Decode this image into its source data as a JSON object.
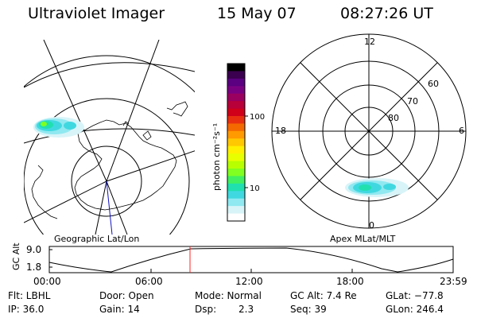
{
  "header": {
    "instrument": "Ultraviolet Imager",
    "date": "15 May 07",
    "time": "08:27:26 UT"
  },
  "left_map": {
    "label": "Geographic Lat/Lon"
  },
  "right_map": {
    "label": "Apex MLat/MLT",
    "mlt_labels": [
      "12",
      "18",
      "6",
      "0"
    ],
    "lat_labels": [
      "60",
      "70",
      "80"
    ]
  },
  "colorbar": {
    "unit_label": "photon cm⁻²s⁻¹",
    "ticks": [
      "100",
      "10"
    ],
    "colors": [
      "#000000",
      "#3b004f",
      "#5a0080",
      "#7a0082",
      "#9a0060",
      "#b8003a",
      "#d0001a",
      "#e83010",
      "#f56a00",
      "#ff9a00",
      "#ffc800",
      "#fff000",
      "#e8ff00",
      "#b8ff00",
      "#80ff20",
      "#40f060",
      "#20e0b0",
      "#40d8e0",
      "#90e8f0",
      "#d8f4f8",
      "#ffffff"
    ]
  },
  "timeline": {
    "y_axis_label": "GC Alt",
    "y_ticks": [
      "9.0",
      "1.8"
    ],
    "x_ticks": [
      "00:00",
      "06:00",
      "12:00",
      "18:00",
      "23:59"
    ],
    "marker_time": "08:27",
    "marker_color": "#ff2020"
  },
  "info": {
    "flt": "Flt: LBHL",
    "ip": "IP: 36.0",
    "door": "Door: Open",
    "gain": "Gain: 14",
    "mode": "Mode: Normal",
    "dsp_label": "Dsp:",
    "dsp_value": "2.3",
    "gcalt": "GC Alt: 7.4 Re",
    "seq": "Seq: 39",
    "glat": "GLat: −77.8",
    "glon": "GLon: 246.4"
  }
}
